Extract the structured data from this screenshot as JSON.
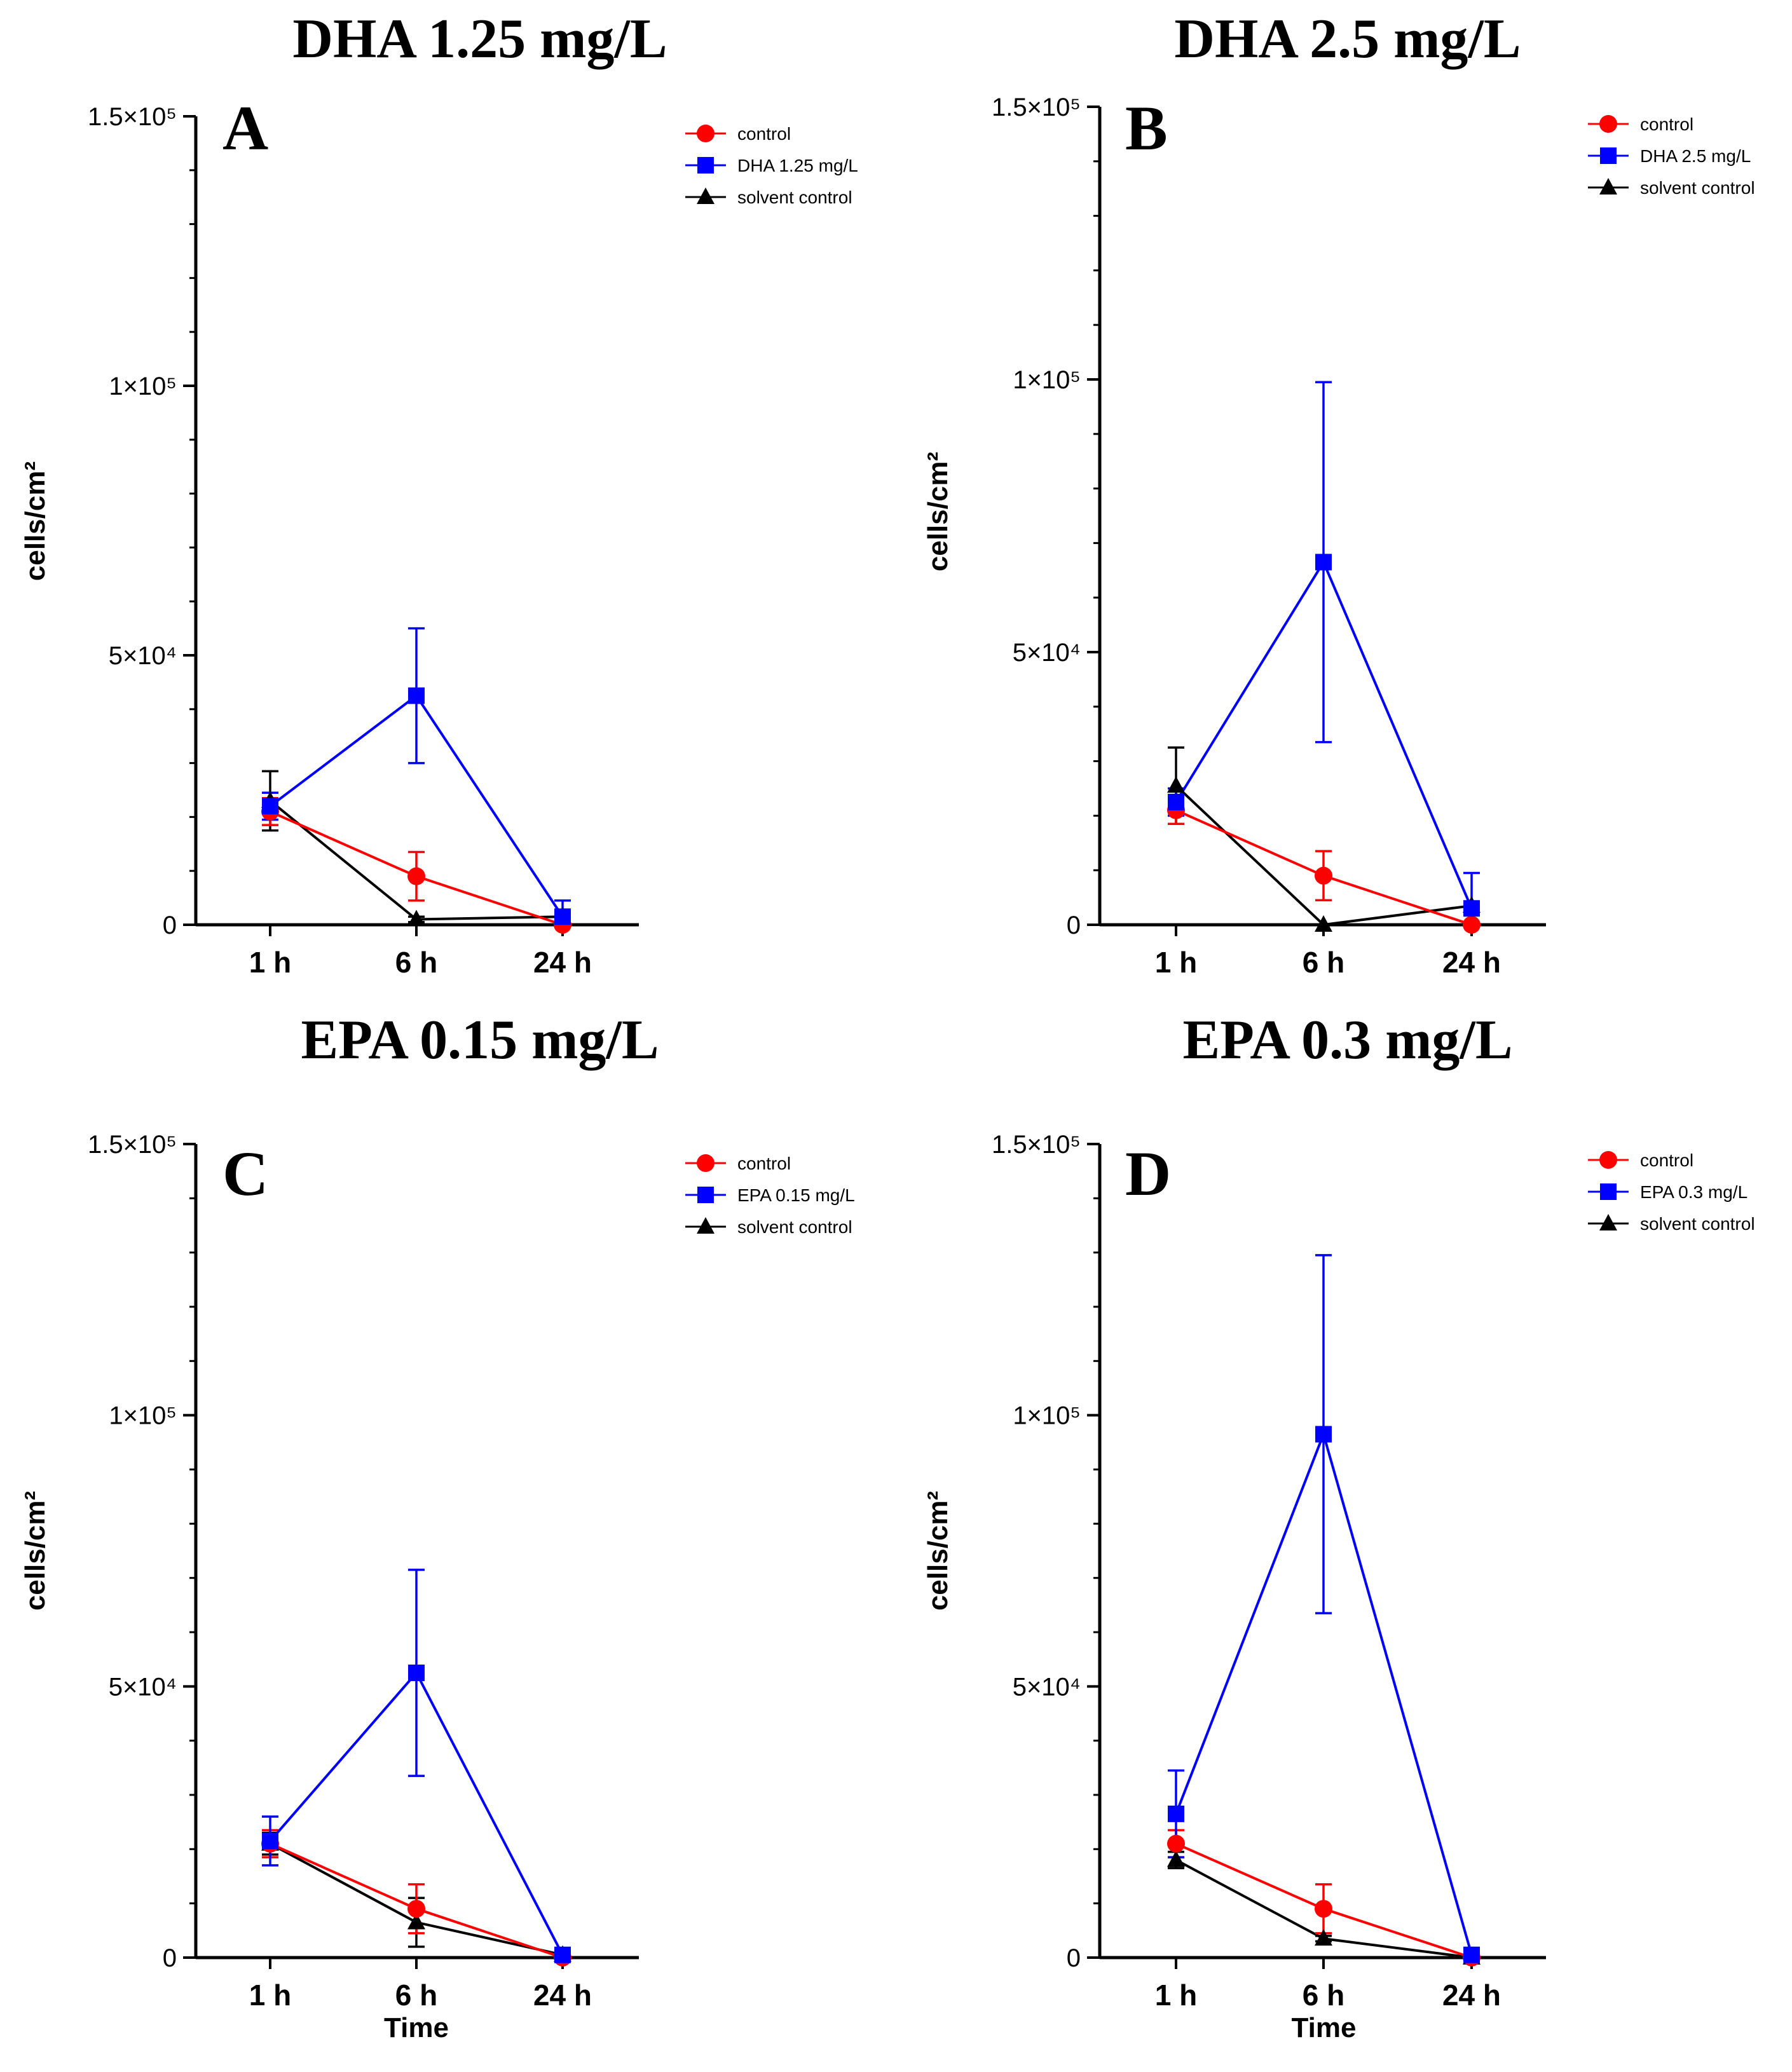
{
  "chart_data": [
    {
      "type": "line",
      "panel": "A",
      "title": "DHA 1.25 mg/L",
      "xlabel": "",
      "ylabel": "cells/cm²",
      "categories": [
        "1 h",
        "6 h",
        "24 h"
      ],
      "ylim": [
        0,
        150000
      ],
      "yticks": [
        0,
        50000,
        100000,
        150000
      ],
      "ytick_labels": [
        "0",
        "5×10⁴",
        "1×10⁵",
        "1.5×10⁵"
      ],
      "legend": "top-right",
      "series": [
        {
          "name": "control",
          "color": "#ff0000",
          "marker": "circle",
          "values": [
            21000,
            9000,
            0
          ],
          "errors": [
            2500,
            4500,
            0
          ]
        },
        {
          "name": "DHA 1.25 mg/L",
          "color": "#0000ff",
          "marker": "square",
          "values": [
            22000,
            42500,
            1500
          ],
          "errors": [
            2500,
            12500,
            3000
          ]
        },
        {
          "name": "solvent control",
          "color": "#000000",
          "marker": "triangle",
          "values": [
            23000,
            1000,
            1500
          ],
          "errors": [
            5500,
            500,
            1000
          ]
        }
      ]
    },
    {
      "type": "line",
      "panel": "B",
      "title": "DHA 2.5 mg/L",
      "xlabel": "",
      "ylabel": "cells/cm²",
      "categories": [
        "1 h",
        "6 h",
        "24 h"
      ],
      "ylim": [
        0,
        150000
      ],
      "yticks": [
        0,
        50000,
        100000,
        150000
      ],
      "ytick_labels": [
        "0",
        "5×10⁴",
        "1×10⁵",
        "1.5×10⁵"
      ],
      "legend": "top-right",
      "series": [
        {
          "name": "control",
          "color": "#ff0000",
          "marker": "circle",
          "values": [
            21000,
            9000,
            0
          ],
          "errors": [
            2500,
            4500,
            0
          ]
        },
        {
          "name": "DHA 2.5 mg/L",
          "color": "#0000ff",
          "marker": "square",
          "values": [
            22500,
            66500,
            3000
          ],
          "errors": [
            2500,
            33000,
            6500
          ]
        },
        {
          "name": "solvent control",
          "color": "#000000",
          "marker": "triangle",
          "values": [
            25500,
            0,
            3500
          ],
          "errors": [
            7000,
            0,
            500
          ]
        }
      ]
    },
    {
      "type": "line",
      "panel": "C",
      "title": "EPA 0.15 mg/L",
      "xlabel": "Time",
      "ylabel": "cells/cm²",
      "categories": [
        "1 h",
        "6 h",
        "24 h"
      ],
      "ylim": [
        0,
        150000
      ],
      "yticks": [
        0,
        50000,
        100000,
        150000
      ],
      "ytick_labels": [
        "0",
        "5×10⁴",
        "1×10⁵",
        "1.5×10⁵"
      ],
      "legend": "top-right",
      "series": [
        {
          "name": "control",
          "color": "#ff0000",
          "marker": "circle",
          "values": [
            21000,
            9000,
            0
          ],
          "errors": [
            2500,
            4500,
            0
          ]
        },
        {
          "name": "EPA 0.15 mg/L",
          "color": "#0000ff",
          "marker": "square",
          "values": [
            21500,
            52500,
            500
          ],
          "errors": [
            4500,
            19000,
            500
          ]
        },
        {
          "name": "solvent control",
          "color": "#000000",
          "marker": "triangle",
          "values": [
            21000,
            6500,
            500
          ],
          "errors": [
            2000,
            4500,
            500
          ]
        }
      ]
    },
    {
      "type": "line",
      "panel": "D",
      "title": "EPA 0.3 mg/L",
      "xlabel": "Time",
      "ylabel": "cells/cm²",
      "categories": [
        "1 h",
        "6 h",
        "24 h"
      ],
      "ylim": [
        0,
        150000
      ],
      "yticks": [
        0,
        50000,
        100000,
        150000
      ],
      "ytick_labels": [
        "0",
        "5×10⁴",
        "1×10⁵",
        "1.5×10⁵"
      ],
      "legend": "top-right",
      "series": [
        {
          "name": "control",
          "color": "#ff0000",
          "marker": "circle",
          "values": [
            21000,
            9000,
            0
          ],
          "errors": [
            2500,
            4500,
            0
          ]
        },
        {
          "name": "EPA 0.3 mg/L",
          "color": "#0000ff",
          "marker": "square",
          "values": [
            26500,
            96500,
            500
          ],
          "errors": [
            8000,
            33000,
            500
          ]
        },
        {
          "name": "solvent control",
          "color": "#000000",
          "marker": "triangle",
          "values": [
            18000,
            3500,
            0
          ],
          "errors": [
            1500,
            500,
            0
          ]
        }
      ]
    }
  ]
}
